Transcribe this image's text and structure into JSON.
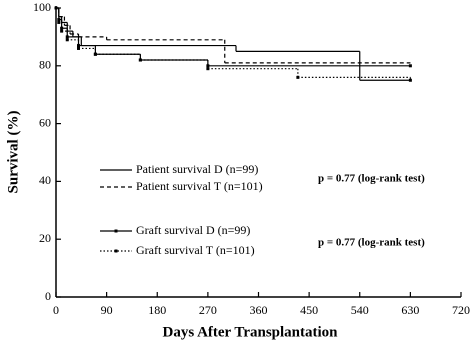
{
  "chart_data": {
    "type": "step-line",
    "x_label": "Days After Transplantation",
    "y_label": "Survival (%)",
    "xlim": [
      0,
      720
    ],
    "xticks": [
      0,
      90,
      180,
      270,
      360,
      450,
      540,
      630,
      720
    ],
    "ylim": [
      0,
      100
    ],
    "yticks": [
      0,
      20,
      40,
      60,
      80,
      100
    ],
    "series": [
      {
        "name": "Patient survival D (n=99)",
        "color": "#000000",
        "linestyle": "solid",
        "marker": false,
        "x": [
          0,
          5,
          10,
          20,
          30,
          45,
          320,
          540,
          630
        ],
        "values": [
          100,
          97,
          95,
          92,
          90,
          87,
          85,
          75,
          75
        ]
      },
      {
        "name": "Patient survival T (n=101)",
        "color": "#000000",
        "linestyle": "dashed",
        "marker": false,
        "x": [
          0,
          5,
          15,
          25,
          40,
          90,
          300,
          630
        ],
        "values": [
          100,
          97,
          94,
          91,
          90,
          89,
          81,
          81
        ]
      },
      {
        "name": "Graft survival D (n=99)",
        "color": "#000000",
        "linestyle": "solid",
        "marker": true,
        "x": [
          0,
          5,
          10,
          20,
          40,
          70,
          150,
          270,
          630
        ],
        "values": [
          100,
          96,
          93,
          90,
          87,
          84,
          82,
          80,
          80
        ]
      },
      {
        "name": "Graft survival T (n=101)",
        "color": "#000000",
        "linestyle": "dotted",
        "marker": true,
        "x": [
          0,
          5,
          10,
          20,
          40,
          70,
          150,
          270,
          430,
          630
        ],
        "values": [
          100,
          95,
          92,
          89,
          86,
          84,
          82,
          79,
          76,
          75
        ]
      }
    ],
    "annotations": [
      "p = 0.77 (log-rank test)",
      "p = 0.77 (log-rank test)"
    ]
  }
}
